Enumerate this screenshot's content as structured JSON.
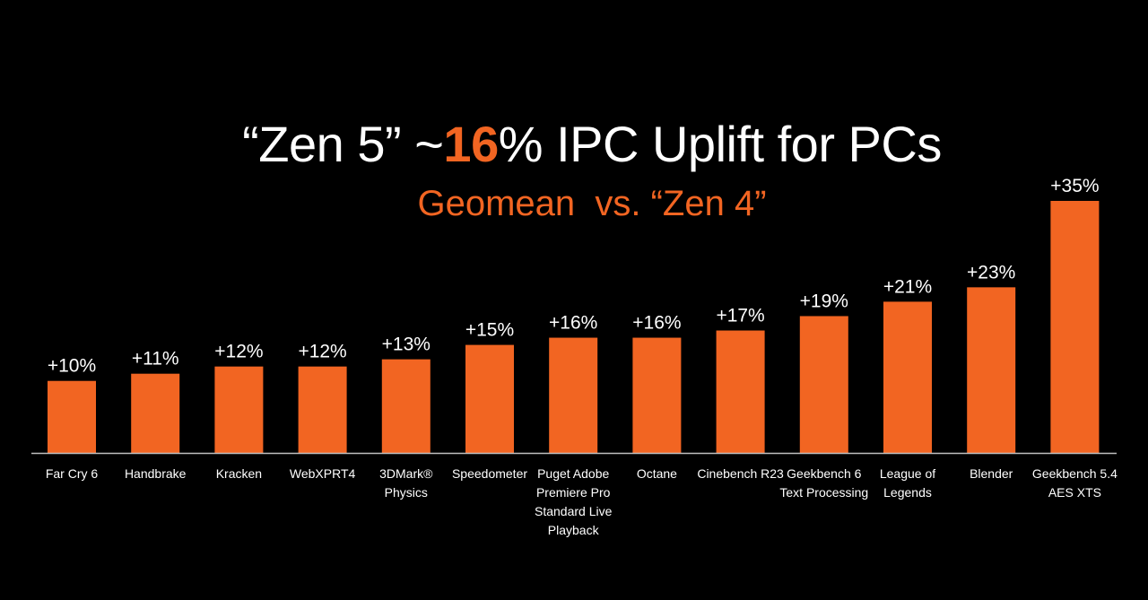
{
  "slide": {
    "title_prefix": "“Zen 5” ~",
    "title_highlight": "16",
    "title_suffix": "% IPC Uplift for PCs",
    "subtitle": "Geomean  vs. “Zen 4”"
  },
  "colors": {
    "background": "#000000",
    "bar": "#f26522",
    "text": "#ffffff",
    "accent": "#f26522",
    "axis": "#bfbfbf"
  },
  "chart_data": {
    "type": "bar",
    "title": "“Zen 5” ~16% IPC Uplift for PCs",
    "subtitle": "Geomean  vs. “Zen 4”",
    "categories": [
      "Far Cry 6",
      "Handbrake",
      "Kracken",
      "WebXPRT4",
      "3DMark® Physics",
      "Speedometer",
      "Puget Adobe Premiere Pro Standard Live Playback",
      "Octane",
      "Cinebench R23",
      "Geekbench 6 Text Processing",
      "League of Legends",
      "Blender",
      "Geekbench 5.4 AES XTS"
    ],
    "category_lines": [
      [
        "Far Cry 6"
      ],
      [
        "Handbrake"
      ],
      [
        "Kracken"
      ],
      [
        "WebXPRT4"
      ],
      [
        "3DMark®",
        "Physics"
      ],
      [
        "Speedometer"
      ],
      [
        "Puget Adobe",
        "Premiere Pro",
        "Standard Live",
        "Playback"
      ],
      [
        "Octane"
      ],
      [
        "Cinebench R23"
      ],
      [
        "Geekbench 6",
        "Text Processing"
      ],
      [
        "League of",
        "Legends"
      ],
      [
        "Blender"
      ],
      [
        "Geekbench 5.4",
        "AES XTS"
      ]
    ],
    "values": [
      10,
      11,
      12,
      12,
      13,
      15,
      16,
      16,
      17,
      19,
      21,
      23,
      35
    ],
    "value_labels": [
      "+10%",
      "+11%",
      "+12%",
      "+12%",
      "+13%",
      "+15%",
      "+16%",
      "+16%",
      "+17%",
      "+19%",
      "+21%",
      "+23%",
      "+35%"
    ],
    "unit": "%",
    "ylim": [
      0,
      35
    ],
    "grid": false,
    "legend": "none"
  }
}
